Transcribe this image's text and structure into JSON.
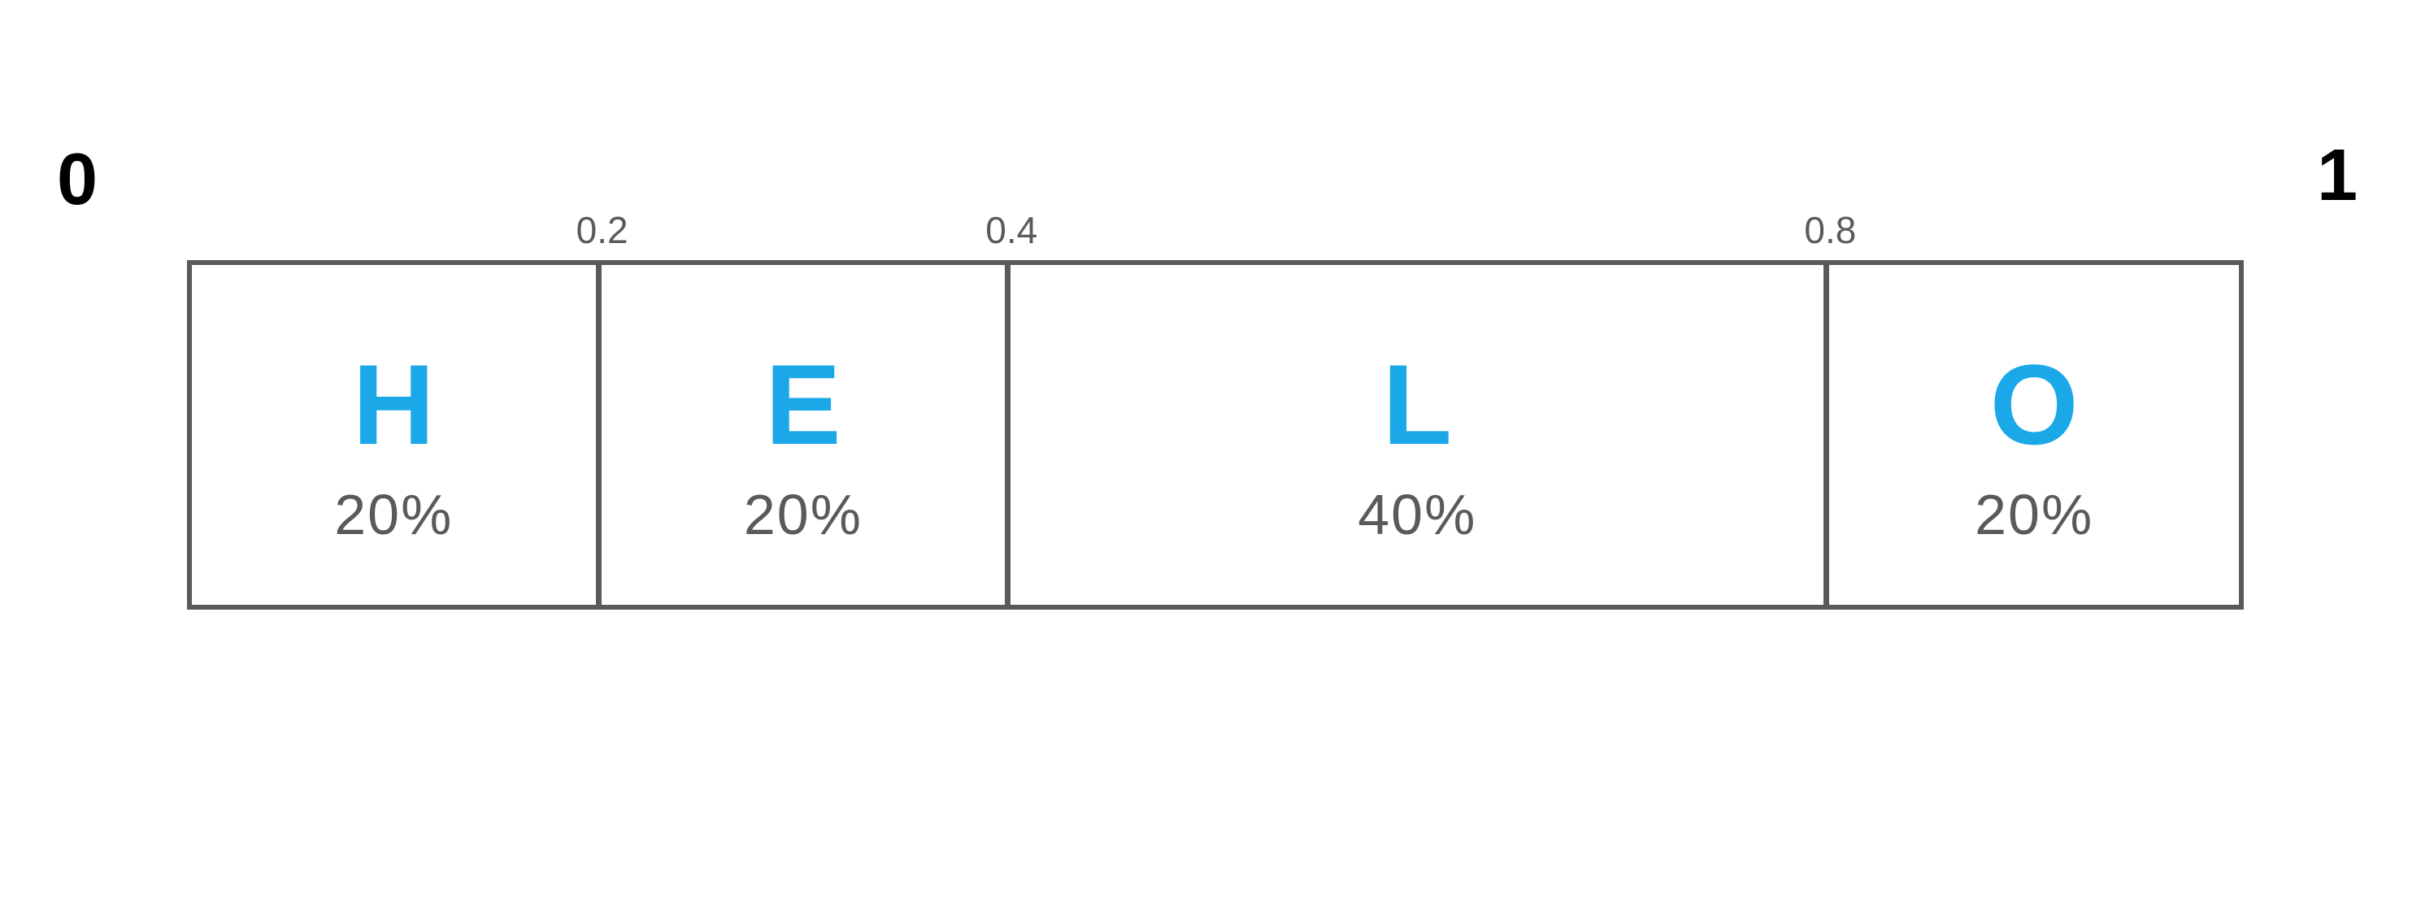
{
  "diagram": {
    "type": "interval-bar",
    "range": {
      "min": "0",
      "max": "1"
    },
    "colors": {
      "border": "#5a5a5a",
      "text": "#5a5a5a",
      "letter": "#1ba8e8",
      "background": "#ffffff",
      "endpoint": "#000000"
    },
    "typography": {
      "endpoint_fontsize": 90,
      "letter_fontsize": 140,
      "percent_fontsize": 70,
      "tick_fontsize": 46,
      "font_family": "Comic Sans MS"
    },
    "segments": [
      {
        "letter": "H",
        "percent": "20%",
        "width_pct": 20,
        "tick_after": "0.2"
      },
      {
        "letter": "E",
        "percent": "20%",
        "width_pct": 20,
        "tick_after": "0.4"
      },
      {
        "letter": "L",
        "percent": "40%",
        "width_pct": 40,
        "tick_after": "0.8"
      },
      {
        "letter": "O",
        "percent": "20%",
        "width_pct": 20,
        "tick_after": null
      }
    ]
  }
}
